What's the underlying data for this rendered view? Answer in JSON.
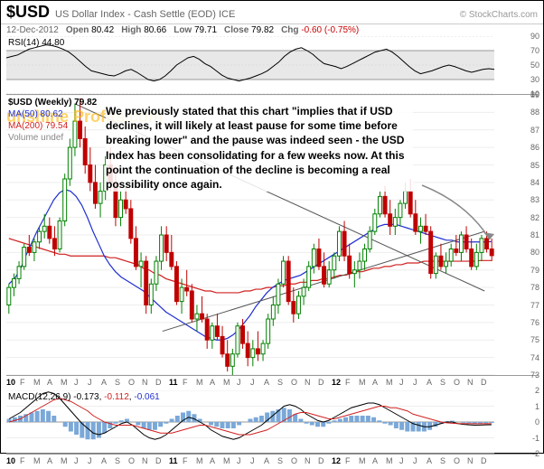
{
  "header": {
    "ticker": "$USD",
    "name": "US Dollar Index - Cash Settle (EOD) ICE",
    "source": "© StockCharts.com",
    "date": "12-Dec-2012",
    "open_label": "Open",
    "open": "80.42",
    "high_label": "High",
    "high": "80.66",
    "low_label": "Low",
    "low": "79.71",
    "close_label": "Close",
    "close": "79.82",
    "chg_label": "Chg",
    "chg": "-0.60 (-0.75%)"
  },
  "rsi": {
    "label": "RSI(14) 44.80",
    "ylim": [
      10,
      90
    ],
    "yticks": [
      10,
      30,
      50,
      70,
      90
    ],
    "overbought": 70,
    "oversold": 30,
    "line_color": "#000",
    "band_color": "#e8e8e8",
    "points": [
      60,
      62,
      64,
      68,
      72,
      74,
      76,
      78,
      77,
      75,
      72,
      68,
      62,
      55,
      48,
      42,
      40,
      38,
      36,
      35,
      38,
      42,
      44,
      40,
      35,
      30,
      28,
      30,
      35,
      42,
      50,
      55,
      60,
      62,
      58,
      52,
      48,
      42,
      36,
      32,
      30,
      28,
      30,
      32,
      35,
      38,
      42,
      48,
      54,
      62,
      68,
      72,
      74,
      70,
      65,
      58,
      52,
      50,
      48,
      45,
      48,
      52,
      56,
      60,
      64,
      68,
      70,
      72,
      68,
      62,
      55,
      48,
      42,
      38,
      40,
      42,
      45,
      48,
      50,
      48,
      45,
      42,
      40,
      42,
      44,
      45,
      44
    ]
  },
  "main": {
    "watermark": "unshine Profits.com",
    "legend": {
      "primary": "$USD (Weekly) 79.82",
      "ma50": "MA(50) 80.62",
      "ma50_color": "#2030d0",
      "ma200": "MA(200) 79.54",
      "ma200_color": "#d02020",
      "volume": "Volume undef"
    },
    "annotation_text": "We previously stated that this chart \"implies that if USD declines, it will likely at least pause for some time before breaking lower\" and the pause was indeed seen - the USD Index has been consolidating for a few weeks now. At this point the continuation of the decline is becoming a real possibility once again.",
    "ylim": [
      73,
      89
    ],
    "yticks": [
      73,
      74,
      75,
      76,
      77,
      78,
      79,
      80,
      81,
      82,
      83,
      84,
      85,
      86,
      87,
      88,
      89
    ],
    "price_color_up": "#008000",
    "price_color_down": "#c00000",
    "ma50_path": [
      78.2,
      78.5,
      79.0,
      79.8,
      80.5,
      81.2,
      81.8,
      82.4,
      83.0,
      83.4,
      83.6,
      83.5,
      83.2,
      82.7,
      82.0,
      81.2,
      80.5,
      79.8,
      79.3,
      78.9,
      78.6,
      78.4,
      78.2,
      78.0,
      77.8,
      77.5,
      77.2,
      76.9,
      76.6,
      76.4,
      76.2,
      76.0,
      75.8,
      75.6,
      75.4,
      75.2,
      75.1,
      75.0,
      75.0,
      75.1,
      75.3,
      75.6,
      76.0,
      76.4,
      76.9,
      77.3,
      77.7,
      78.0,
      78.2,
      78.4,
      78.5,
      78.6,
      78.7,
      78.9,
      79.1,
      79.3,
      79.5,
      79.7,
      79.9,
      80.1,
      80.3,
      80.5,
      80.7,
      80.9,
      81.1,
      81.3,
      81.5,
      81.6,
      81.6,
      81.6,
      81.5,
      81.4,
      81.3,
      81.2,
      81.1,
      81.0,
      80.9,
      80.8,
      80.7,
      80.7,
      80.6,
      80.6,
      80.6,
      80.6,
      80.6,
      80.6,
      80.62
    ],
    "ma200_path": [
      80.8,
      80.7,
      80.6,
      80.5,
      80.4,
      80.3,
      80.2,
      80.1,
      80.0,
      79.9,
      79.9,
      79.8,
      79.8,
      79.8,
      79.8,
      79.8,
      79.8,
      79.8,
      79.7,
      79.7,
      79.6,
      79.5,
      79.4,
      79.3,
      79.1,
      79.0,
      78.8,
      78.7,
      78.5,
      78.4,
      78.3,
      78.2,
      78.1,
      78.0,
      77.9,
      77.8,
      77.8,
      77.7,
      77.7,
      77.7,
      77.7,
      77.7,
      77.8,
      77.8,
      77.9,
      77.9,
      78.0,
      78.0,
      78.1,
      78.1,
      78.2,
      78.2,
      78.3,
      78.3,
      78.4,
      78.4,
      78.5,
      78.5,
      78.6,
      78.7,
      78.7,
      78.8,
      78.9,
      78.9,
      79.0,
      79.1,
      79.1,
      79.2,
      79.2,
      79.3,
      79.3,
      79.4,
      79.4,
      79.4,
      79.5,
      79.5,
      79.5,
      79.5,
      79.5,
      79.5,
      79.5,
      79.5,
      79.5,
      79.5,
      79.54,
      79.54,
      79.54
    ],
    "trend_lines": [
      {
        "x1": 0.14,
        "y1": 88.5,
        "x2": 0.98,
        "y2": 77.8,
        "color": "#555"
      },
      {
        "x1": 0.32,
        "y1": 75.5,
        "x2": 0.98,
        "y2": 81.2,
        "color": "#555"
      }
    ],
    "candles": [
      {
        "o": 77.0,
        "h": 78.2,
        "l": 76.5,
        "c": 78.0
      },
      {
        "o": 78.0,
        "h": 78.8,
        "l": 77.5,
        "c": 78.5
      },
      {
        "o": 78.5,
        "h": 79.5,
        "l": 78.2,
        "c": 79.2
      },
      {
        "o": 79.2,
        "h": 80.5,
        "l": 79.0,
        "c": 80.3
      },
      {
        "o": 80.3,
        "h": 81.0,
        "l": 79.8,
        "c": 80.0
      },
      {
        "o": 80.0,
        "h": 80.8,
        "l": 79.5,
        "c": 80.6
      },
      {
        "o": 80.6,
        "h": 81.5,
        "l": 80.2,
        "c": 81.2
      },
      {
        "o": 81.2,
        "h": 82.2,
        "l": 80.8,
        "c": 81.5
      },
      {
        "o": 81.5,
        "h": 82.0,
        "l": 80.5,
        "c": 80.8
      },
      {
        "o": 80.8,
        "h": 81.5,
        "l": 79.8,
        "c": 80.2
      },
      {
        "o": 80.2,
        "h": 82.0,
        "l": 80.0,
        "c": 81.8
      },
      {
        "o": 81.8,
        "h": 84.5,
        "l": 81.5,
        "c": 84.2
      },
      {
        "o": 84.2,
        "h": 86.5,
        "l": 83.8,
        "c": 86.0
      },
      {
        "o": 86.0,
        "h": 88.5,
        "l": 85.5,
        "c": 87.5
      },
      {
        "o": 87.5,
        "h": 88.8,
        "l": 86.0,
        "c": 86.5
      },
      {
        "o": 86.5,
        "h": 87.2,
        "l": 84.5,
        "c": 85.0
      },
      {
        "o": 85.0,
        "h": 86.0,
        "l": 83.5,
        "c": 84.0
      },
      {
        "o": 84.0,
        "h": 85.0,
        "l": 82.5,
        "c": 82.8
      },
      {
        "o": 82.8,
        "h": 84.0,
        "l": 82.0,
        "c": 83.5
      },
      {
        "o": 83.5,
        "h": 85.5,
        "l": 83.0,
        "c": 85.0
      },
      {
        "o": 85.0,
        "h": 86.0,
        "l": 83.5,
        "c": 84.0
      },
      {
        "o": 84.0,
        "h": 84.5,
        "l": 81.5,
        "c": 82.0
      },
      {
        "o": 82.0,
        "h": 83.5,
        "l": 81.5,
        "c": 83.0
      },
      {
        "o": 83.0,
        "h": 83.8,
        "l": 82.2,
        "c": 82.5
      },
      {
        "o": 82.5,
        "h": 83.0,
        "l": 80.5,
        "c": 80.8
      },
      {
        "o": 80.8,
        "h": 81.5,
        "l": 79.0,
        "c": 79.2
      },
      {
        "o": 79.2,
        "h": 80.0,
        "l": 78.0,
        "c": 79.5
      },
      {
        "o": 79.5,
        "h": 79.8,
        "l": 76.5,
        "c": 77.0
      },
      {
        "o": 77.0,
        "h": 78.5,
        "l": 76.5,
        "c": 78.2
      },
      {
        "o": 78.2,
        "h": 79.8,
        "l": 77.8,
        "c": 79.5
      },
      {
        "o": 79.5,
        "h": 81.5,
        "l": 79.0,
        "c": 81.0
      },
      {
        "o": 81.0,
        "h": 81.5,
        "l": 79.5,
        "c": 80.0
      },
      {
        "o": 80.0,
        "h": 81.0,
        "l": 79.0,
        "c": 79.2
      },
      {
        "o": 79.2,
        "h": 79.5,
        "l": 77.0,
        "c": 77.2
      },
      {
        "o": 77.2,
        "h": 78.5,
        "l": 76.5,
        "c": 78.0
      },
      {
        "o": 78.0,
        "h": 79.0,
        "l": 77.5,
        "c": 77.8
      },
      {
        "o": 77.8,
        "h": 78.2,
        "l": 76.0,
        "c": 76.2
      },
      {
        "o": 76.2,
        "h": 77.0,
        "l": 75.5,
        "c": 76.5
      },
      {
        "o": 76.5,
        "h": 77.5,
        "l": 76.0,
        "c": 76.2
      },
      {
        "o": 76.2,
        "h": 76.5,
        "l": 74.5,
        "c": 75.0
      },
      {
        "o": 75.0,
        "h": 76.0,
        "l": 74.5,
        "c": 75.8
      },
      {
        "o": 75.8,
        "h": 76.5,
        "l": 75.0,
        "c": 75.2
      },
      {
        "o": 75.2,
        "h": 75.8,
        "l": 74.0,
        "c": 74.2
      },
      {
        "o": 74.2,
        "h": 75.0,
        "l": 73.2,
        "c": 73.5
      },
      {
        "o": 73.5,
        "h": 74.5,
        "l": 73.0,
        "c": 74.2
      },
      {
        "o": 74.2,
        "h": 76.0,
        "l": 74.0,
        "c": 75.8
      },
      {
        "o": 75.8,
        "h": 76.2,
        "l": 74.5,
        "c": 74.8
      },
      {
        "o": 74.8,
        "h": 75.5,
        "l": 73.5,
        "c": 74.0
      },
      {
        "o": 74.0,
        "h": 75.0,
        "l": 73.5,
        "c": 74.5
      },
      {
        "o": 74.5,
        "h": 75.5,
        "l": 73.8,
        "c": 74.2
      },
      {
        "o": 74.2,
        "h": 75.0,
        "l": 73.8,
        "c": 74.8
      },
      {
        "o": 74.8,
        "h": 76.5,
        "l": 74.5,
        "c": 76.2
      },
      {
        "o": 76.2,
        "h": 77.5,
        "l": 75.8,
        "c": 77.0
      },
      {
        "o": 77.0,
        "h": 78.5,
        "l": 76.5,
        "c": 78.2
      },
      {
        "o": 78.2,
        "h": 79.8,
        "l": 78.0,
        "c": 79.5
      },
      {
        "o": 79.5,
        "h": 79.8,
        "l": 77.0,
        "c": 77.2
      },
      {
        "o": 77.2,
        "h": 78.0,
        "l": 76.0,
        "c": 76.5
      },
      {
        "o": 76.5,
        "h": 77.8,
        "l": 76.2,
        "c": 77.5
      },
      {
        "o": 77.5,
        "h": 78.5,
        "l": 77.0,
        "c": 78.0
      },
      {
        "o": 78.0,
        "h": 79.5,
        "l": 77.8,
        "c": 79.2
      },
      {
        "o": 79.2,
        "h": 80.5,
        "l": 78.8,
        "c": 80.2
      },
      {
        "o": 80.2,
        "h": 80.8,
        "l": 79.0,
        "c": 79.2
      },
      {
        "o": 79.2,
        "h": 80.0,
        "l": 78.0,
        "c": 78.2
      },
      {
        "o": 78.2,
        "h": 79.5,
        "l": 78.0,
        "c": 79.0
      },
      {
        "o": 79.0,
        "h": 80.0,
        "l": 78.5,
        "c": 79.8
      },
      {
        "o": 79.8,
        "h": 81.5,
        "l": 79.5,
        "c": 81.2
      },
      {
        "o": 81.2,
        "h": 81.8,
        "l": 79.5,
        "c": 79.8
      },
      {
        "o": 79.8,
        "h": 80.5,
        "l": 78.5,
        "c": 78.8
      },
      {
        "o": 78.8,
        "h": 79.5,
        "l": 78.0,
        "c": 79.0
      },
      {
        "o": 79.0,
        "h": 80.0,
        "l": 78.5,
        "c": 79.5
      },
      {
        "o": 79.5,
        "h": 80.5,
        "l": 79.0,
        "c": 80.2
      },
      {
        "o": 80.2,
        "h": 81.5,
        "l": 80.0,
        "c": 81.2
      },
      {
        "o": 81.2,
        "h": 82.5,
        "l": 81.0,
        "c": 82.2
      },
      {
        "o": 82.2,
        "h": 83.5,
        "l": 82.0,
        "c": 83.2
      },
      {
        "o": 83.2,
        "h": 83.8,
        "l": 82.0,
        "c": 82.2
      },
      {
        "o": 82.2,
        "h": 83.0,
        "l": 81.0,
        "c": 81.5
      },
      {
        "o": 81.5,
        "h": 82.5,
        "l": 81.0,
        "c": 82.0
      },
      {
        "o": 82.0,
        "h": 83.0,
        "l": 81.5,
        "c": 82.8
      },
      {
        "o": 82.8,
        "h": 84.0,
        "l": 82.5,
        "c": 83.5
      },
      {
        "o": 83.5,
        "h": 84.2,
        "l": 82.0,
        "c": 82.2
      },
      {
        "o": 82.2,
        "h": 83.0,
        "l": 81.0,
        "c": 81.2
      },
      {
        "o": 81.2,
        "h": 82.0,
        "l": 80.5,
        "c": 81.5
      },
      {
        "o": 81.5,
        "h": 82.2,
        "l": 81.0,
        "c": 81.2
      },
      {
        "o": 81.2,
        "h": 81.5,
        "l": 78.5,
        "c": 78.8
      },
      {
        "o": 78.8,
        "h": 80.0,
        "l": 78.5,
        "c": 79.8
      },
      {
        "o": 79.8,
        "h": 80.5,
        "l": 79.0,
        "c": 79.2
      },
      {
        "o": 79.2,
        "h": 80.0,
        "l": 78.8,
        "c": 79.5
      },
      {
        "o": 79.5,
        "h": 80.5,
        "l": 79.2,
        "c": 80.2
      },
      {
        "o": 80.2,
        "h": 81.0,
        "l": 79.8,
        "c": 80.0
      },
      {
        "o": 80.0,
        "h": 81.2,
        "l": 79.5,
        "c": 81.0
      },
      {
        "o": 81.0,
        "h": 81.5,
        "l": 80.0,
        "c": 80.2
      },
      {
        "o": 80.2,
        "h": 80.8,
        "l": 79.0,
        "c": 79.2
      },
      {
        "o": 79.2,
        "h": 80.5,
        "l": 79.0,
        "c": 80.0
      },
      {
        "o": 80.0,
        "h": 81.0,
        "l": 79.5,
        "c": 80.8
      },
      {
        "o": 80.8,
        "h": 81.2,
        "l": 80.0,
        "c": 80.2
      },
      {
        "o": 80.2,
        "h": 80.8,
        "l": 79.5,
        "c": 79.82
      }
    ]
  },
  "macd": {
    "label": "MACD(12,26,9)",
    "v1": "-0.173",
    "v1_color": "#000",
    "v2": "-0.112",
    "v2_color": "#d02020",
    "v3": "-0.061",
    "v3_color": "#2030d0",
    "ylim": [
      -2,
      2
    ],
    "yticks": [
      -2,
      -1,
      0,
      1,
      2
    ],
    "hist_color_pos": "#7aa8d8",
    "hist_color_neg": "#7aa8d8",
    "macd_line": [
      0.2,
      0.4,
      0.6,
      0.9,
      1.2,
      1.5,
      1.8,
      1.9,
      1.8,
      1.5,
      1.1,
      0.7,
      0.3,
      -0.1,
      -0.4,
      -0.7,
      -0.8,
      -0.7,
      -0.5,
      -0.3,
      -0.1,
      0.0,
      -0.2,
      -0.5,
      -0.8,
      -1.0,
      -1.1,
      -1.0,
      -0.8,
      -0.5,
      -0.2,
      0.1,
      0.3,
      0.2,
      0.0,
      -0.2,
      -0.5,
      -0.7,
      -0.9,
      -1.0,
      -1.1,
      -1.0,
      -0.8,
      -0.6,
      -0.4,
      -0.2,
      0.1,
      0.4,
      0.7,
      1.0,
      1.1,
      1.0,
      0.8,
      0.5,
      0.3,
      0.1,
      0.0,
      0.1,
      0.3,
      0.5,
      0.7,
      0.9,
      1.0,
      1.1,
      1.2,
      1.2,
      1.1,
      0.9,
      0.7,
      0.5,
      0.3,
      0.1,
      -0.1,
      -0.2,
      -0.3,
      -0.3,
      -0.2,
      -0.1,
      0.0,
      0.0,
      -0.1,
      -0.15,
      -0.18,
      -0.2,
      -0.19,
      -0.18,
      -0.17
    ],
    "signal_line": [
      0.0,
      0.1,
      0.2,
      0.4,
      0.6,
      0.8,
      1.0,
      1.2,
      1.4,
      1.5,
      1.4,
      1.3,
      1.1,
      0.9,
      0.7,
      0.4,
      0.2,
      0.0,
      -0.1,
      -0.2,
      -0.2,
      -0.2,
      -0.2,
      -0.3,
      -0.4,
      -0.5,
      -0.6,
      -0.7,
      -0.7,
      -0.7,
      -0.6,
      -0.5,
      -0.4,
      -0.3,
      -0.2,
      -0.2,
      -0.3,
      -0.4,
      -0.5,
      -0.6,
      -0.7,
      -0.8,
      -0.8,
      -0.8,
      -0.7,
      -0.6,
      -0.5,
      -0.3,
      -0.1,
      0.1,
      0.3,
      0.5,
      0.6,
      0.6,
      0.5,
      0.4,
      0.3,
      0.2,
      0.2,
      0.3,
      0.4,
      0.5,
      0.6,
      0.7,
      0.8,
      0.9,
      1.0,
      1.0,
      0.9,
      0.9,
      0.8,
      0.7,
      0.5,
      0.4,
      0.3,
      0.2,
      0.1,
      0.0,
      -0.05,
      -0.08,
      -0.1,
      -0.1,
      -0.11,
      -0.11,
      -0.11,
      -0.11,
      -0.11
    ],
    "histogram": [
      0.2,
      0.3,
      0.4,
      0.5,
      0.6,
      0.7,
      0.8,
      0.7,
      0.4,
      0.0,
      -0.3,
      -0.6,
      -0.8,
      -1.0,
      -1.1,
      -1.1,
      -1.0,
      -0.7,
      -0.4,
      -0.1,
      0.1,
      0.2,
      0.0,
      -0.2,
      -0.4,
      -0.5,
      -0.5,
      -0.3,
      -0.1,
      0.2,
      0.4,
      0.6,
      0.7,
      0.5,
      0.2,
      0.0,
      -0.2,
      -0.3,
      -0.4,
      -0.4,
      -0.4,
      -0.2,
      0.0,
      0.2,
      0.3,
      0.4,
      0.6,
      0.7,
      0.8,
      0.9,
      0.8,
      0.5,
      0.2,
      -0.1,
      -0.2,
      -0.3,
      -0.3,
      -0.1,
      0.1,
      0.2,
      0.3,
      0.4,
      0.4,
      0.4,
      0.4,
      0.3,
      0.1,
      -0.1,
      -0.2,
      -0.4,
      -0.5,
      -0.6,
      -0.6,
      -0.6,
      -0.6,
      -0.5,
      -0.3,
      -0.1,
      0.05,
      0.08,
      0.0,
      -0.05,
      -0.07,
      -0.09,
      -0.08,
      -0.07,
      -0.06
    ]
  },
  "xaxis": {
    "years": [
      "10",
      "11",
      "12"
    ],
    "months": [
      "F",
      "M",
      "A",
      "M",
      "J",
      "J",
      "A",
      "S",
      "O",
      "N",
      "D"
    ]
  }
}
